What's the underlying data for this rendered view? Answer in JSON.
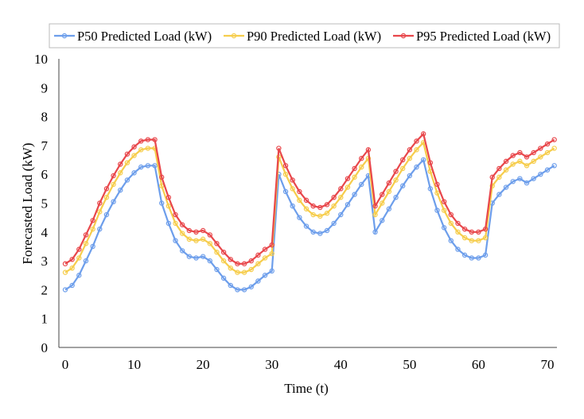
{
  "chart_data": {
    "type": "line",
    "title": "",
    "xlabel": "Time (t)",
    "ylabel": "Forecasted Load (kW)",
    "xlim": [
      0,
      70
    ],
    "ylim": [
      0,
      10
    ],
    "xticks": [
      "0",
      "10",
      "20",
      "30",
      "40",
      "50",
      "60",
      "70"
    ],
    "yticks": [
      "0",
      "1",
      "2",
      "3",
      "4",
      "5",
      "6",
      "7",
      "8",
      "9",
      "10"
    ],
    "grid": false,
    "legend_position": "top",
    "x": [
      0,
      1,
      2,
      3,
      4,
      5,
      6,
      7,
      8,
      9,
      10,
      11,
      12,
      13,
      14,
      15,
      16,
      17,
      18,
      19,
      20,
      21,
      22,
      23,
      24,
      25,
      26,
      27,
      28,
      29,
      30,
      31,
      32,
      33,
      34,
      35,
      36,
      37,
      38,
      39,
      40,
      41,
      42,
      43,
      44,
      45,
      46,
      47,
      48,
      49,
      50,
      51,
      52,
      53,
      54,
      55,
      56,
      57,
      58,
      59,
      60,
      61,
      62,
      63,
      64,
      65,
      66,
      67,
      68,
      69,
      70,
      71
    ],
    "series": [
      {
        "name": "P50 Predicted Load (kW)",
        "color": "#6d9eeb",
        "values": [
          2.0,
          2.15,
          2.5,
          3.0,
          3.5,
          4.1,
          4.6,
          5.05,
          5.45,
          5.8,
          6.05,
          6.25,
          6.3,
          6.3,
          5.0,
          4.3,
          3.7,
          3.35,
          3.15,
          3.1,
          3.15,
          3.0,
          2.7,
          2.4,
          2.15,
          2.0,
          2.0,
          2.1,
          2.3,
          2.5,
          2.65,
          6.0,
          5.4,
          4.9,
          4.5,
          4.2,
          4.0,
          3.95,
          4.05,
          4.3,
          4.6,
          4.95,
          5.3,
          5.65,
          5.95,
          4.0,
          4.4,
          4.8,
          5.2,
          5.6,
          5.95,
          6.25,
          6.5,
          5.5,
          4.75,
          4.15,
          3.7,
          3.4,
          3.2,
          3.1,
          3.1,
          3.2,
          5.0,
          5.3,
          5.55,
          5.75,
          5.85,
          5.7,
          5.85,
          6.0,
          6.15,
          6.3
        ]
      },
      {
        "name": "P90 Predicted Load (kW)",
        "color": "#f6cd4c",
        "values": [
          2.6,
          2.75,
          3.1,
          3.6,
          4.1,
          4.7,
          5.2,
          5.65,
          6.05,
          6.4,
          6.65,
          6.85,
          6.9,
          6.9,
          5.6,
          4.9,
          4.3,
          3.95,
          3.75,
          3.7,
          3.75,
          3.6,
          3.3,
          3.0,
          2.75,
          2.6,
          2.6,
          2.7,
          2.9,
          3.1,
          3.25,
          6.6,
          6.0,
          5.5,
          5.1,
          4.8,
          4.6,
          4.55,
          4.65,
          4.9,
          5.2,
          5.55,
          5.9,
          6.25,
          6.55,
          4.6,
          5.0,
          5.4,
          5.8,
          6.2,
          6.55,
          6.85,
          7.1,
          6.1,
          5.35,
          4.75,
          4.3,
          4.0,
          3.8,
          3.7,
          3.7,
          3.8,
          5.6,
          5.9,
          6.15,
          6.35,
          6.45,
          6.3,
          6.45,
          6.6,
          6.75,
          6.9
        ]
      },
      {
        "name": "P95 Predicted Load (kW)",
        "color": "#e8474b",
        "values": [
          2.9,
          3.05,
          3.4,
          3.9,
          4.4,
          5.0,
          5.5,
          5.95,
          6.35,
          6.7,
          6.95,
          7.15,
          7.2,
          7.2,
          5.9,
          5.2,
          4.6,
          4.25,
          4.05,
          4.0,
          4.05,
          3.9,
          3.6,
          3.3,
          3.05,
          2.9,
          2.9,
          3.0,
          3.2,
          3.4,
          3.55,
          6.9,
          6.3,
          5.8,
          5.4,
          5.1,
          4.9,
          4.85,
          4.95,
          5.2,
          5.5,
          5.85,
          6.2,
          6.55,
          6.85,
          4.9,
          5.3,
          5.7,
          6.1,
          6.5,
          6.85,
          7.15,
          7.4,
          6.4,
          5.65,
          5.05,
          4.6,
          4.3,
          4.1,
          4.0,
          4.0,
          4.1,
          5.9,
          6.2,
          6.45,
          6.65,
          6.75,
          6.6,
          6.75,
          6.9,
          7.05,
          7.2
        ]
      }
    ]
  }
}
